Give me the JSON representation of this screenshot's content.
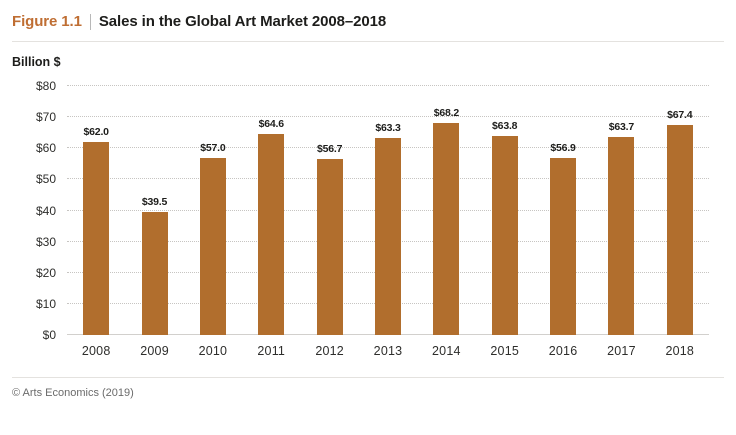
{
  "header": {
    "figure_label": "Figure 1.1",
    "divider": "|",
    "title": "Sales in the Global Art Market 2008–2018"
  },
  "chart_data": {
    "type": "bar",
    "title": "Sales in the Global Art Market 2008–2018",
    "xlabel": "",
    "ylabel": "Billion $",
    "categories": [
      "2008",
      "2009",
      "2010",
      "2011",
      "2012",
      "2013",
      "2014",
      "2015",
      "2016",
      "2017",
      "2018"
    ],
    "values": [
      62.0,
      39.5,
      57.0,
      64.6,
      56.7,
      63.3,
      68.2,
      63.8,
      56.9,
      63.7,
      67.4
    ],
    "value_labels": [
      "$62.0",
      "$39.5",
      "$57.0",
      "$64.6",
      "$56.7",
      "$63.3",
      "$68.2",
      "$63.8",
      "$56.9",
      "$63.7",
      "$67.4"
    ],
    "ylim": [
      0,
      80
    ],
    "ytick_step": 10,
    "ytick_prefix": "$",
    "ytick_labels": [
      "$0",
      "$10",
      "$20",
      "$30",
      "$40",
      "$50",
      "$60",
      "$70",
      "$80"
    ],
    "grid": "horizontal-dotted",
    "legend": "none",
    "bar_color": "#b16e2d"
  },
  "footer": {
    "source": "© Arts Economics (2019)"
  },
  "colors": {
    "accent_orange": "#bf6e33",
    "bar": "#b16e2d",
    "text_dark": "#1d1d1b",
    "grid": "#c7c5c2",
    "rule": "#e4e2df",
    "muted_text": "#6b6b6b"
  }
}
